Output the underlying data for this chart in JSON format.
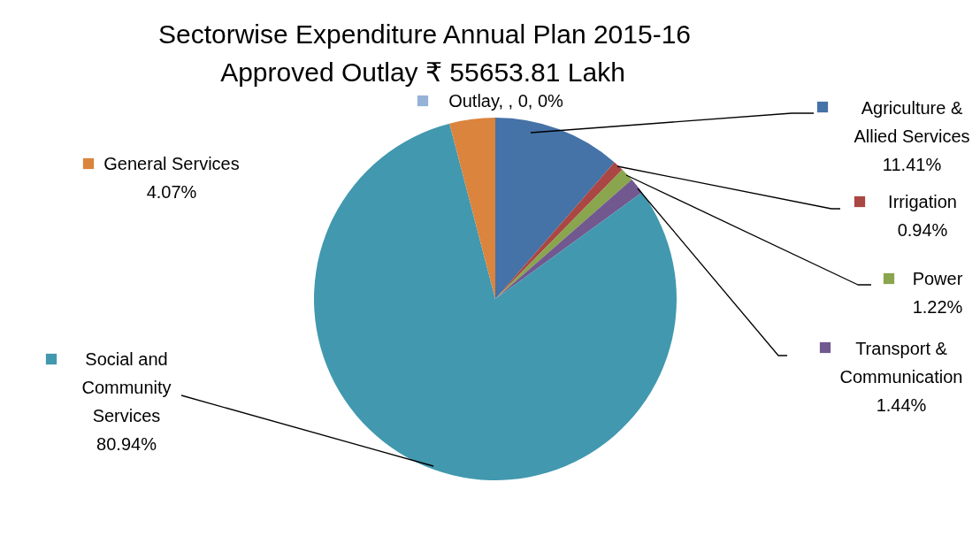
{
  "chart_data": {
    "type": "pie",
    "title": "Sectorwise  Expenditure  Annual Plan 2015-16",
    "subtitle": "Approved Outlay ₹ 55653.81 Lakh",
    "categories": [
      "Outlay",
      "Agriculture & Allied Services",
      "Irrigation",
      "Power",
      "Transport & Communication",
      "Social and Community Services",
      "General Services"
    ],
    "values": [
      0,
      11.41,
      0.94,
      1.22,
      1.44,
      80.94,
      4.07
    ],
    "value_labels": [
      ", , 0, 0%",
      "11.41%",
      "0.94%",
      "1.22%",
      "1.44%",
      "80.94%",
      "4.07%"
    ],
    "colors": [
      "#95b3d7",
      "#4572a7",
      "#aa4643",
      "#89a54e",
      "#71588f",
      "#4198af",
      "#db843d"
    ],
    "legend": "right"
  }
}
